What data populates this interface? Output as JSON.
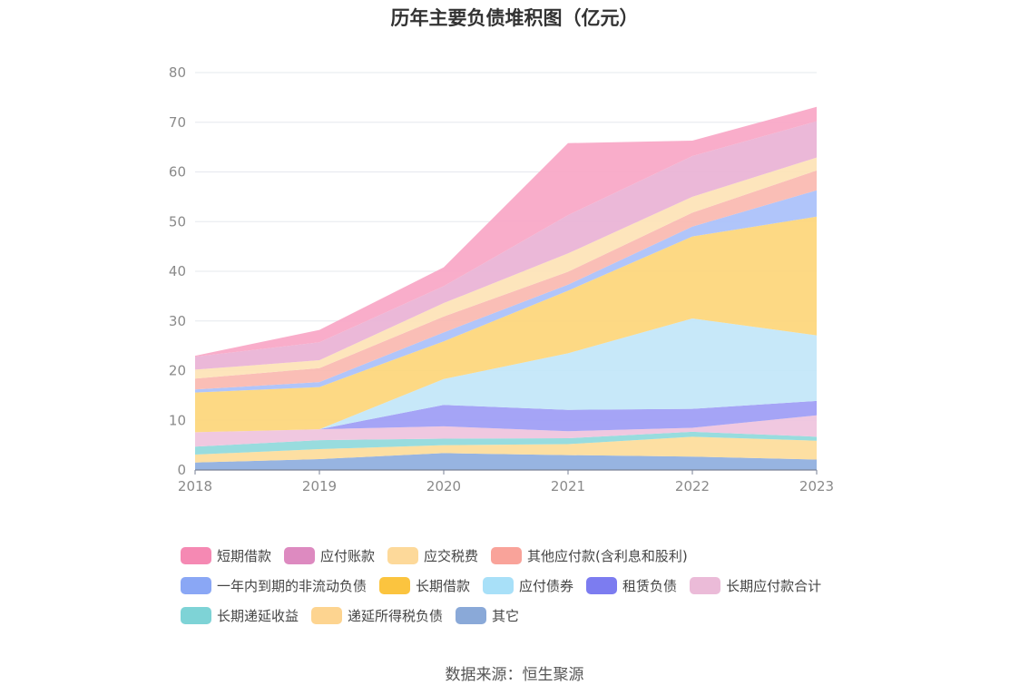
{
  "chart_data": {
    "type": "area",
    "stacked": true,
    "title": "历年主要负债堆积图（亿元）",
    "categories": [
      "2018",
      "2019",
      "2020",
      "2021",
      "2022",
      "2023"
    ],
    "ylim": [
      0,
      80
    ],
    "yticks": [
      0,
      10,
      20,
      30,
      40,
      50,
      60,
      70,
      80
    ],
    "grid": true,
    "legend_position": "bottom",
    "series": [
      {
        "name": "其它",
        "color": "#8eaede",
        "values": [
          1.5,
          2.2,
          3.4,
          3.0,
          2.7,
          2.1
        ]
      },
      {
        "name": "递延所得税负债",
        "color": "#fddc9a",
        "values": [
          1.6,
          2.0,
          1.6,
          2.2,
          4.0,
          3.8
        ]
      },
      {
        "name": "长期递延收益",
        "color": "#8fd9db",
        "values": [
          1.6,
          1.8,
          1.3,
          1.2,
          1.0,
          0.8
        ]
      },
      {
        "name": "长期应付款合计",
        "color": "#efc3dd",
        "values": [
          2.9,
          2.2,
          2.5,
          1.4,
          0.8,
          4.3
        ]
      },
      {
        "name": "租赁负债",
        "color": "#9d9cf5",
        "values": [
          0,
          0,
          4.3,
          4.3,
          3.8,
          2.9
        ]
      },
      {
        "name": "应付债券",
        "color": "#c2e6f8",
        "values": [
          0,
          0,
          5.2,
          11.4,
          18.2,
          13.2
        ]
      },
      {
        "name": "长期借款",
        "color": "#fdd679",
        "values": [
          8.0,
          8.5,
          7.6,
          12.6,
          16.5,
          23.9
        ]
      },
      {
        "name": "一年内到期的非流动负债",
        "color": "#a9c0fa",
        "values": [
          0.6,
          1.0,
          1.8,
          1.2,
          2.0,
          5.3
        ]
      },
      {
        "name": "其他应付款(含利息和股利)",
        "color": "#fab8b0",
        "values": [
          2.2,
          2.8,
          3.2,
          2.6,
          2.8,
          4.0
        ]
      },
      {
        "name": "应交税费",
        "color": "#fde3b6",
        "values": [
          1.8,
          1.6,
          2.7,
          3.7,
          3.2,
          2.6
        ]
      },
      {
        "name": "应付账款",
        "color": "#e9b2d5",
        "values": [
          2.6,
          3.6,
          3.4,
          7.7,
          8.2,
          7.3
        ]
      },
      {
        "name": "短期借款",
        "color": "#f8a6c6",
        "values": [
          0.2,
          2.5,
          3.8,
          14.5,
          3.1,
          2.9
        ]
      }
    ]
  },
  "legend": {
    "rows": [
      [
        {
          "label": "短期借款",
          "color": "#f589b3"
        },
        {
          "label": "应付账款",
          "color": "#dd8ac0"
        },
        {
          "label": "应交税费",
          "color": "#fdd99a"
        },
        {
          "label": "其他应付款(含利息和股利)",
          "color": "#f9a39a"
        }
      ],
      [
        {
          "label": "一年内到期的非流动负债",
          "color": "#8aa7f5"
        },
        {
          "label": "长期借款",
          "color": "#fbc43f"
        },
        {
          "label": "应付债券",
          "color": "#a8e0f8"
        },
        {
          "label": "租赁负债",
          "color": "#7c7cf0"
        },
        {
          "label": "长期应付款合计",
          "color": "#ebbbd8"
        }
      ],
      [
        {
          "label": "长期递延收益",
          "color": "#7ed3d6"
        },
        {
          "label": "递延所得税负债",
          "color": "#fdd490"
        },
        {
          "label": "其它",
          "color": "#8aa9d8"
        }
      ]
    ]
  },
  "source": "数据来源：恒生聚源"
}
